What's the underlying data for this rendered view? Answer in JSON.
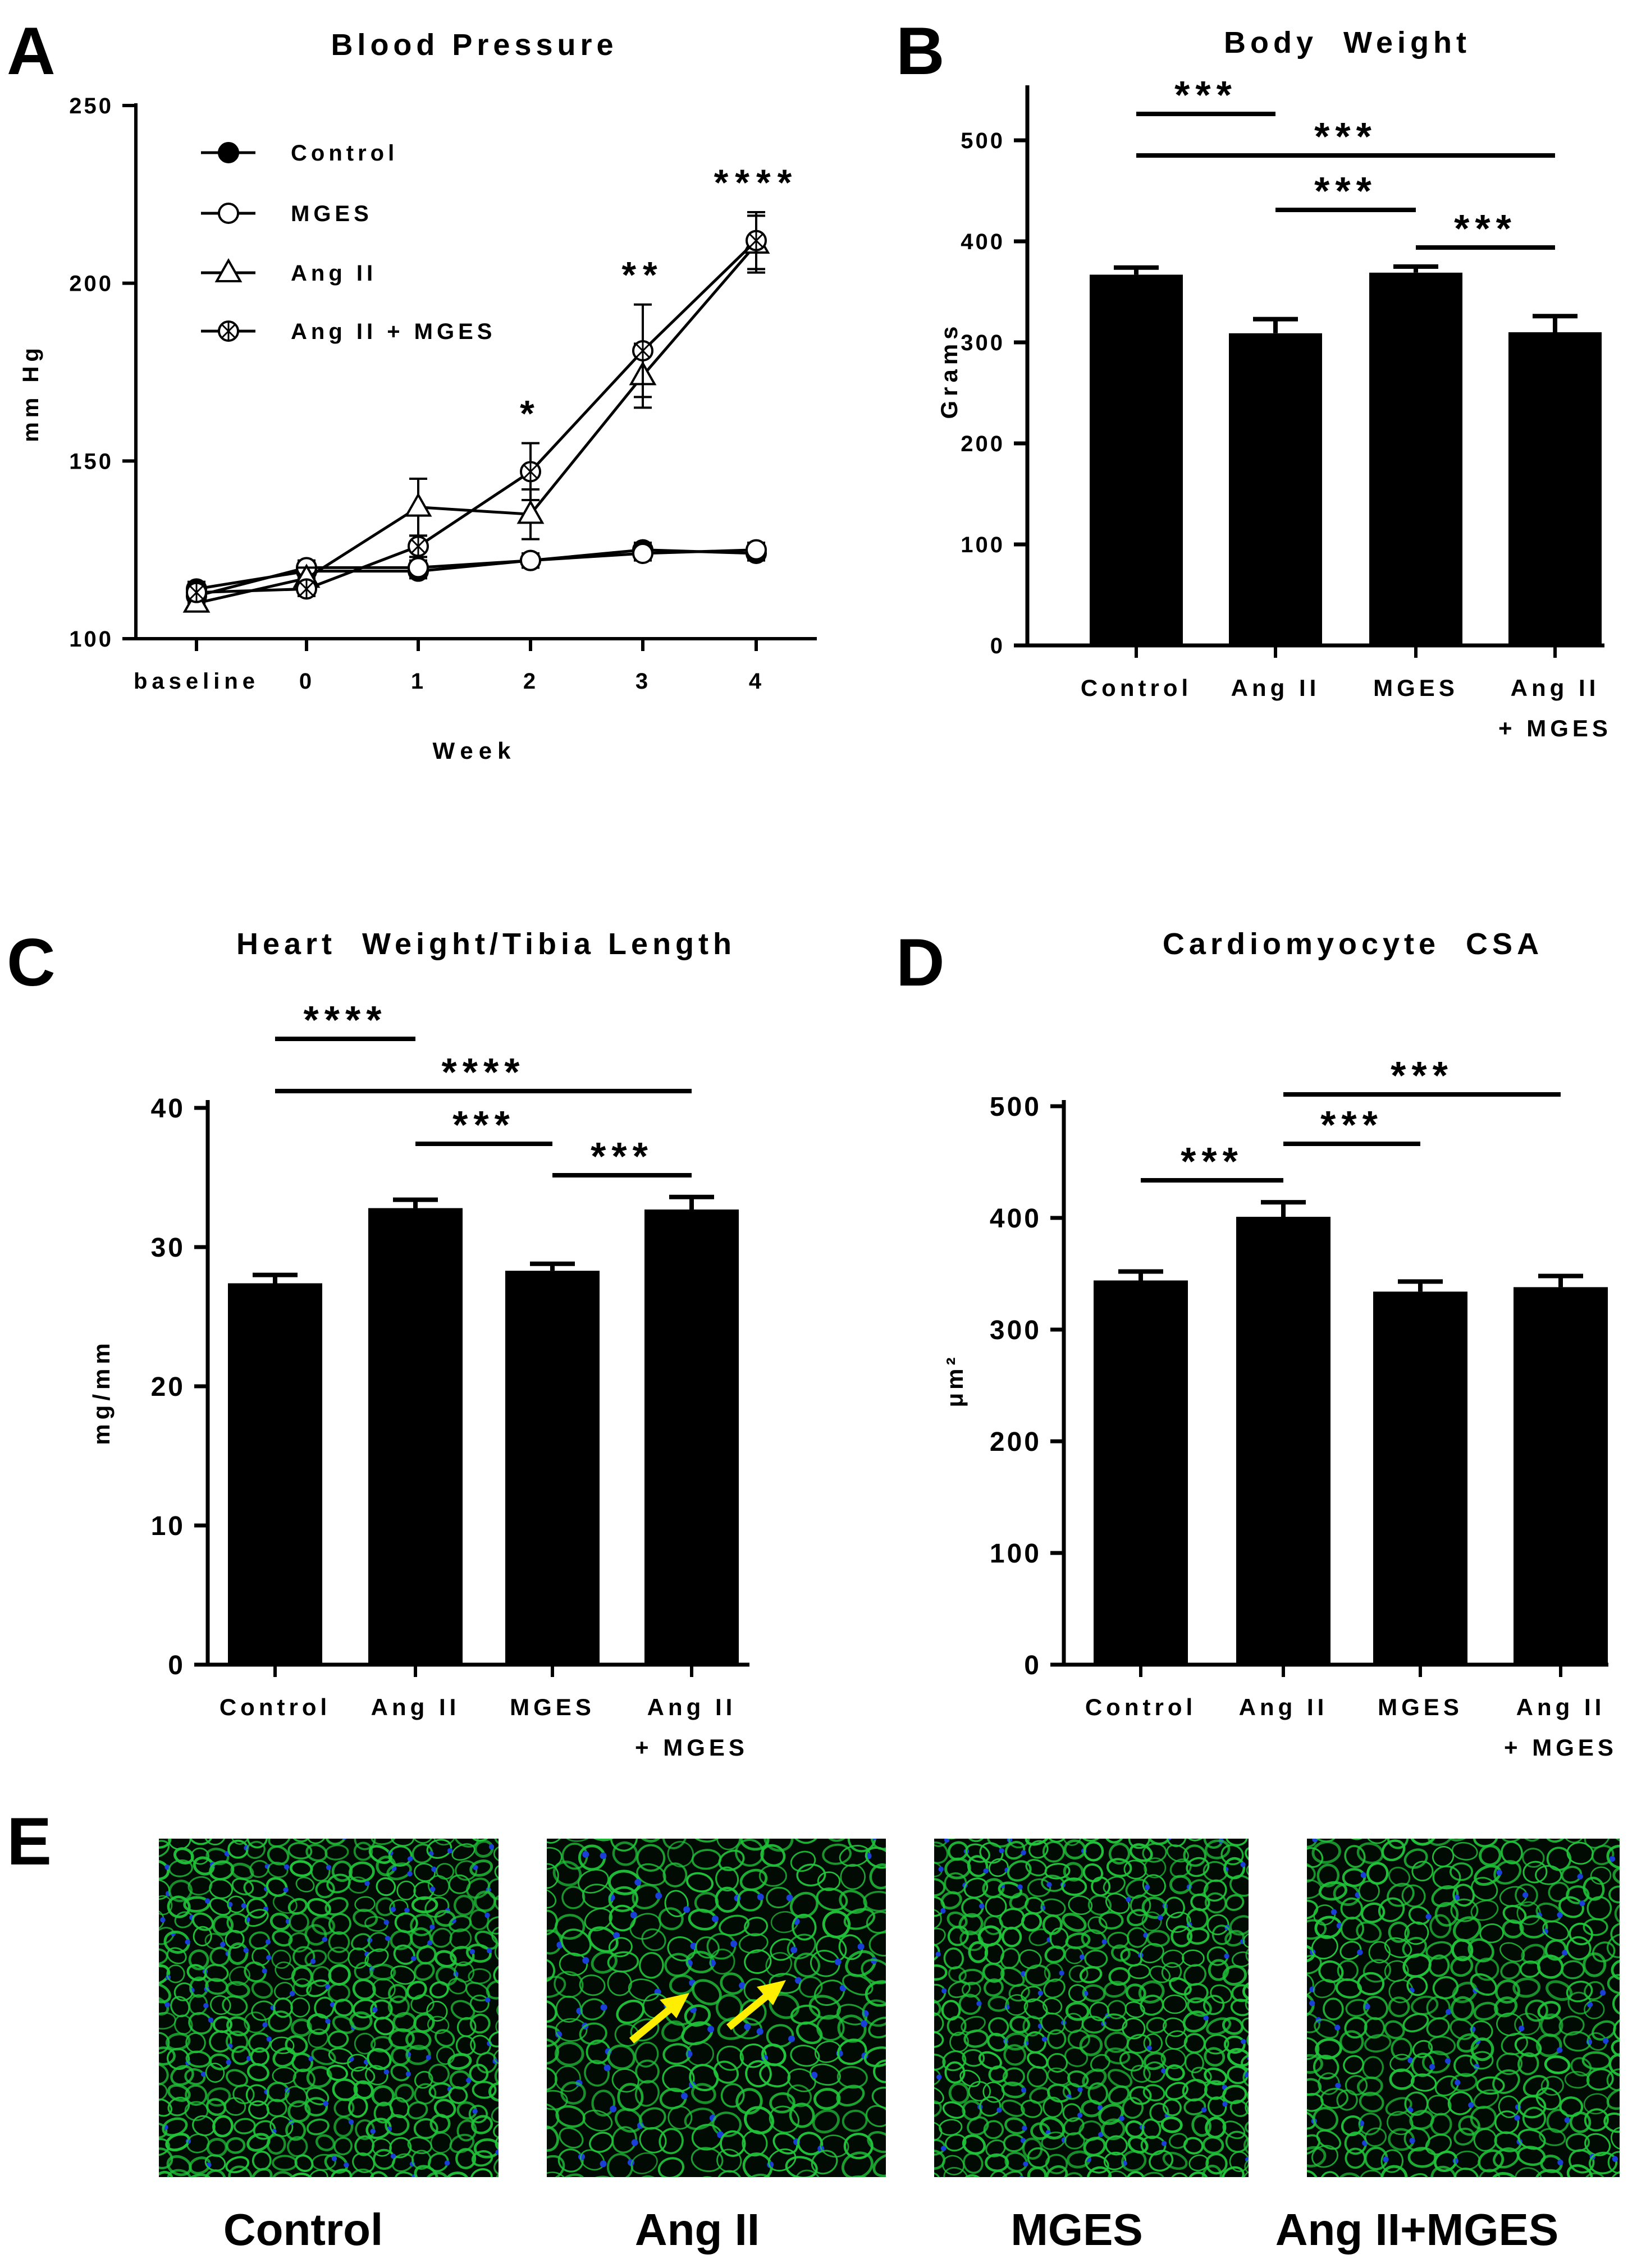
{
  "figure": {
    "panel_letters": [
      "A",
      "B",
      "C",
      "D",
      "E"
    ]
  },
  "chart_data": [
    {
      "panel": "A",
      "type": "line",
      "title": "Blood Pressure",
      "xlabel": "Week",
      "ylabel": "mm Hg",
      "categories": [
        "baseline",
        "0",
        "1",
        "2",
        "3",
        "4"
      ],
      "ylim": [
        100,
        250
      ],
      "yticks": [
        100,
        150,
        200,
        250
      ],
      "grid": false,
      "legend_position": "top-left",
      "series": [
        {
          "name": "Control",
          "marker": "filled-circle",
          "values": [
            114,
            119,
            119,
            122,
            125,
            124
          ],
          "errors": [
            2,
            2,
            2,
            2,
            2,
            2
          ]
        },
        {
          "name": "MGES",
          "marker": "open-circle",
          "values": [
            112,
            120,
            120,
            122,
            124,
            125
          ],
          "errors": [
            2,
            2,
            2,
            2,
            2,
            2
          ]
        },
        {
          "name": "Ang II",
          "marker": "open-triangle",
          "values": [
            110,
            117,
            137,
            135,
            174,
            211
          ],
          "errors": [
            2,
            3,
            8,
            7,
            9,
            8
          ]
        },
        {
          "name": "Ang II + MGES",
          "marker": "crossed-circle",
          "values": [
            113,
            114,
            126,
            147,
            181,
            212
          ],
          "errors": [
            2,
            2,
            3,
            8,
            13,
            8
          ]
        }
      ],
      "significance": [
        {
          "category": "2",
          "label": "*"
        },
        {
          "category": "3",
          "label": "**"
        },
        {
          "category": "4",
          "label": "****"
        }
      ]
    },
    {
      "panel": "B",
      "type": "bar",
      "title": "Body  Weight",
      "ylabel": "Grams",
      "categories": [
        [
          "Control"
        ],
        [
          "Ang II"
        ],
        [
          "MGES"
        ],
        [
          "Ang II",
          "+ MGES"
        ]
      ],
      "values": [
        367,
        309,
        369,
        310
      ],
      "errors": [
        7,
        14,
        6,
        16
      ],
      "ylim": [
        0,
        500
      ],
      "yticks": [
        0,
        100,
        200,
        300,
        400,
        500
      ],
      "comparisons": [
        {
          "from": 0,
          "to": 1,
          "label": "***"
        },
        {
          "from": 0,
          "to": 3,
          "label": "***"
        },
        {
          "from": 1,
          "to": 2,
          "label": "***"
        },
        {
          "from": 2,
          "to": 3,
          "label": "***"
        }
      ]
    },
    {
      "panel": "C",
      "type": "bar",
      "title": "Heart  Weight/Tibia Length",
      "ylabel": "mg/mm",
      "categories": [
        [
          "Control"
        ],
        [
          "Ang II"
        ],
        [
          "MGES"
        ],
        [
          "Ang II",
          "+ MGES"
        ]
      ],
      "values": [
        27.4,
        32.8,
        28.3,
        32.7
      ],
      "errors": [
        0.6,
        0.6,
        0.5,
        0.9
      ],
      "ylim": [
        0,
        40
      ],
      "yticks": [
        0,
        10,
        20,
        30,
        40
      ],
      "comparisons": [
        {
          "from": 0,
          "to": 1,
          "label": "****"
        },
        {
          "from": 0,
          "to": 3,
          "label": "****"
        },
        {
          "from": 1,
          "to": 2,
          "label": "***"
        },
        {
          "from": 2,
          "to": 3,
          "label": "***"
        }
      ]
    },
    {
      "panel": "D",
      "type": "bar",
      "title": "Cardiomyocyte  CSA",
      "ylabel": "μm²",
      "categories": [
        [
          "Control"
        ],
        [
          "Ang II"
        ],
        [
          "MGES"
        ],
        [
          "Ang II",
          "+ MGES"
        ]
      ],
      "values": [
        344,
        401,
        334,
        338
      ],
      "errors": [
        8,
        13,
        9,
        10
      ],
      "ylim": [
        0,
        500
      ],
      "yticks": [
        0,
        100,
        200,
        300,
        400,
        500
      ],
      "comparisons": [
        {
          "from": 0,
          "to": 1,
          "label": "***"
        },
        {
          "from": 1,
          "to": 2,
          "label": "***"
        },
        {
          "from": 1,
          "to": 3,
          "label": "***"
        }
      ]
    }
  ],
  "micrographs": {
    "panel": "E",
    "captions": [
      "Control",
      "Ang II",
      "MGES",
      "Ang II+MGES"
    ],
    "colors": {
      "background": "#020a04",
      "membrane": "#21c43a",
      "nucleus": "#1a3fd8",
      "arrow": "#ffee00"
    }
  }
}
